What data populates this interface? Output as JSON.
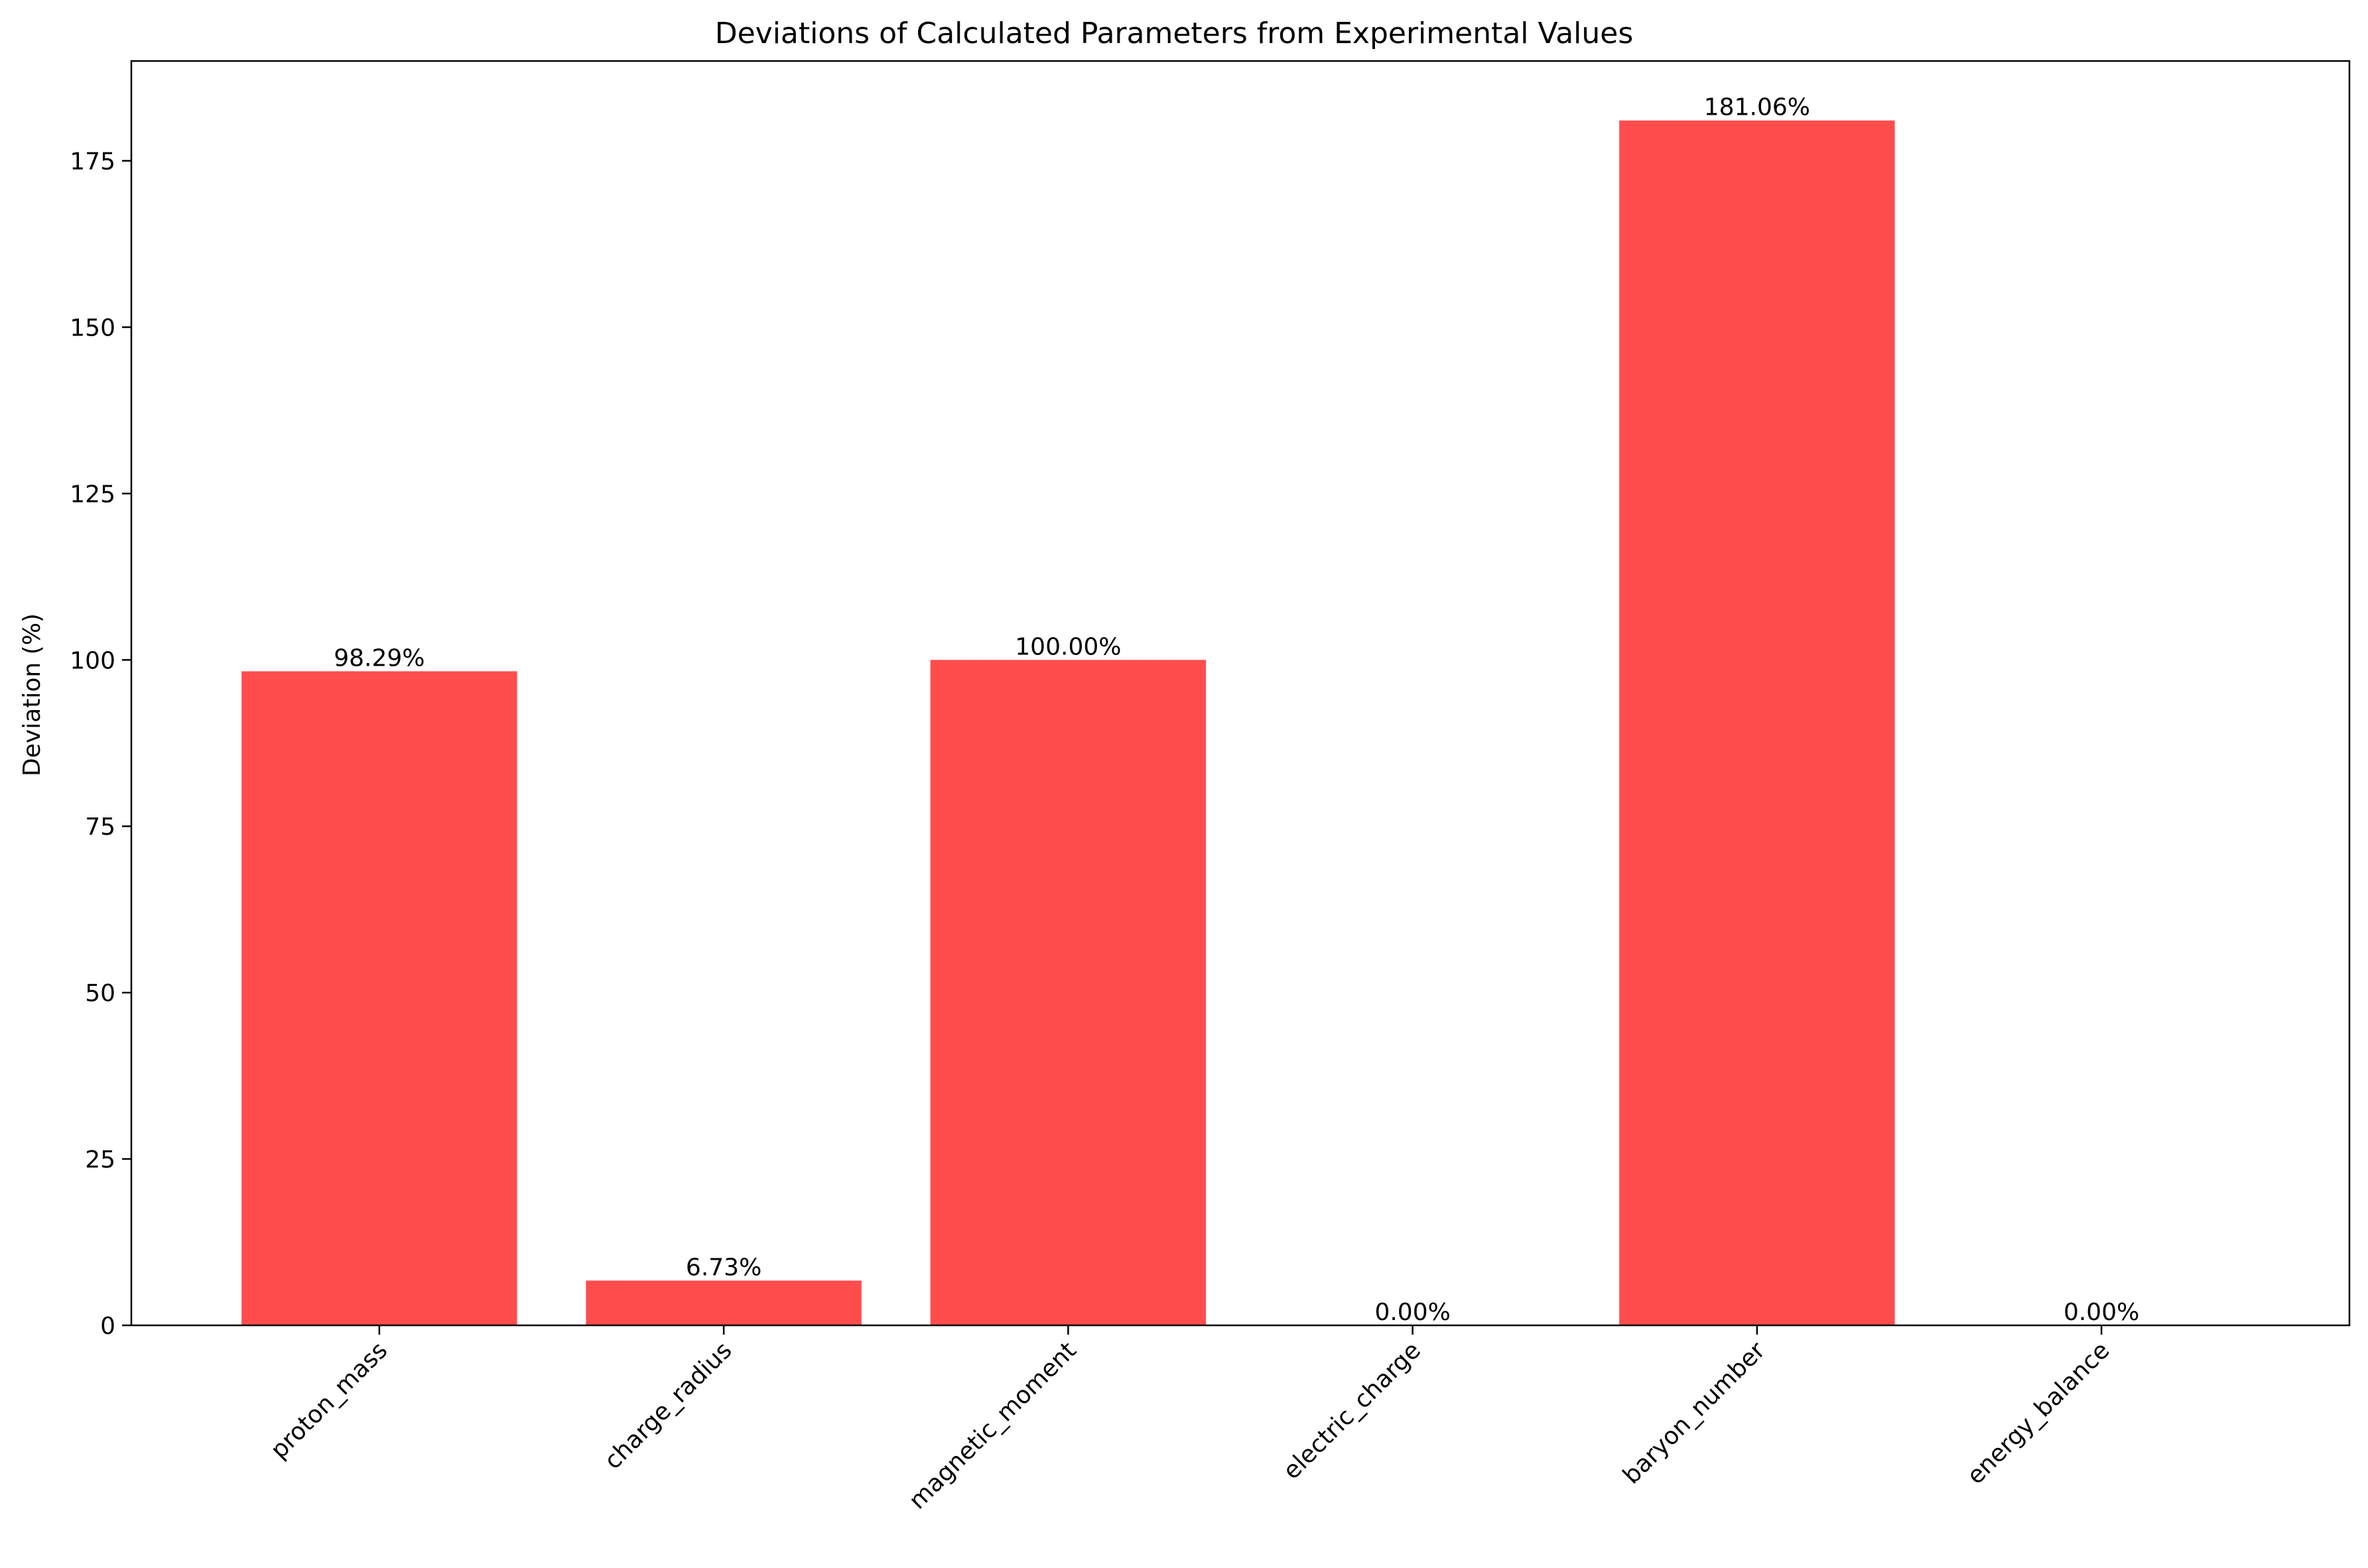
{
  "chart_data": {
    "type": "bar",
    "title": "Deviations of Calculated Parameters from Experimental Values",
    "xlabel": "",
    "ylabel": "Deviation (%)",
    "categories": [
      "proton_mass",
      "charge_radius",
      "magnetic_moment",
      "electric_charge",
      "baryon_number",
      "energy_balance"
    ],
    "values": [
      98.29,
      6.73,
      100.0,
      0.0,
      181.06,
      0.0
    ],
    "data_labels": [
      "98.29%",
      "6.73%",
      "100.00%",
      "0.00%",
      "181.06%",
      "0.00%"
    ],
    "ylim": [
      0,
      190
    ],
    "yticks": [
      0,
      25,
      50,
      75,
      100,
      125,
      150,
      175
    ],
    "grid": false,
    "legend": "none",
    "bar_color": "#ff4d4d",
    "x_tick_rotation": 45
  }
}
